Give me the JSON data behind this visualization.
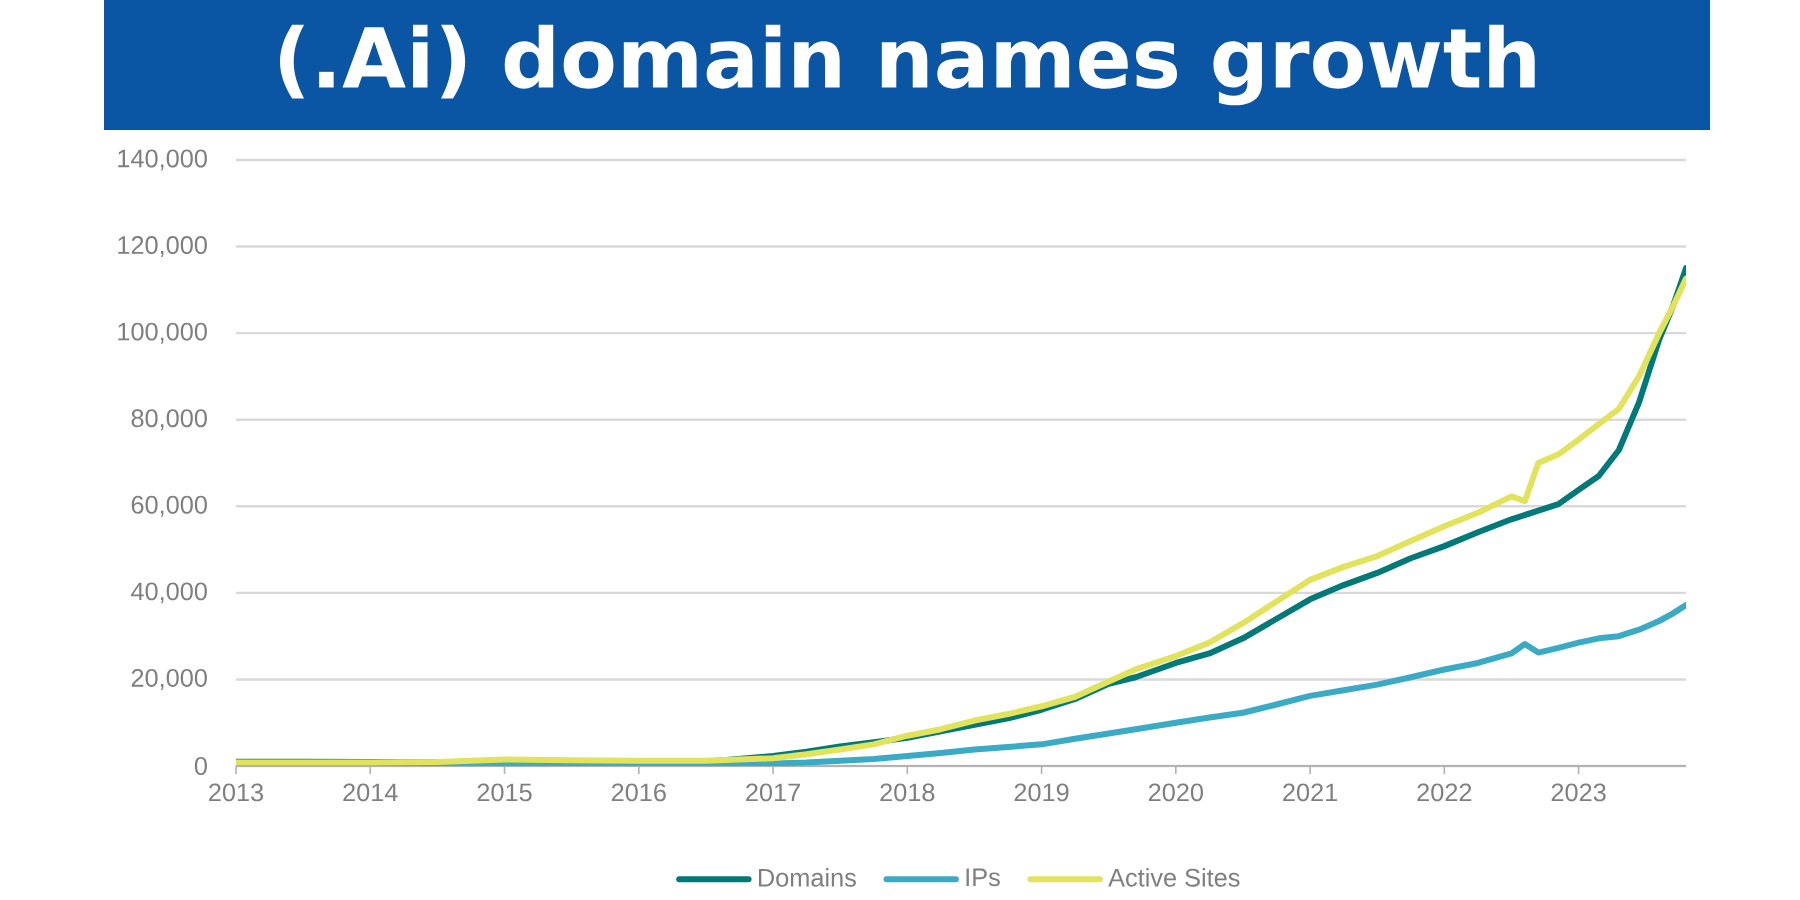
{
  "chart_data": {
    "type": "line",
    "title": "(.Ai) domain names growth",
    "x": [
      2013,
      2013.5,
      2014,
      2014.5,
      2015,
      2015.5,
      2016,
      2016.5,
      2017,
      2017.25,
      2017.5,
      2017.75,
      2018,
      2018.25,
      2018.5,
      2018.75,
      2019,
      2019.25,
      2019.5,
      2019.7,
      2020,
      2020.25,
      2020.5,
      2020.75,
      2021,
      2021.25,
      2021.5,
      2021.75,
      2022,
      2022.25,
      2022.5,
      2022.6,
      2022.7,
      2022.85,
      2023,
      2023.15,
      2023.3,
      2023.45,
      2023.6,
      2023.7,
      2023.8
    ],
    "series": [
      {
        "name": "Domains",
        "color": "#007a78",
        "values": [
          1000,
          1000,
          900,
          800,
          900,
          900,
          800,
          1000,
          2300,
          3300,
          4500,
          5500,
          6500,
          8000,
          9500,
          11000,
          13000,
          15500,
          19000,
          20500,
          23800,
          26000,
          29500,
          34000,
          38500,
          41800,
          44600,
          48000,
          50800,
          54000,
          57000,
          58000,
          59000,
          60500,
          63800,
          67000,
          73000,
          84000,
          98500,
          106000,
          115000
        ]
      },
      {
        "name": "IPs",
        "color": "#3aaac5",
        "values": [
          200,
          200,
          200,
          200,
          300,
          300,
          300,
          400,
          600,
          800,
          1200,
          1600,
          2300,
          3000,
          3800,
          4400,
          5000,
          6300,
          7500,
          8500,
          10000,
          11200,
          12300,
          14200,
          16200,
          17500,
          18800,
          20500,
          22300,
          23800,
          26000,
          28200,
          26200,
          27300,
          28500,
          29500,
          30000,
          31500,
          33500,
          35200,
          37200
        ]
      },
      {
        "name": "Active Sites",
        "color": "#e2e35c",
        "values": [
          800,
          800,
          800,
          900,
          1500,
          1300,
          1200,
          1200,
          1800,
          2700,
          3800,
          5000,
          7000,
          8500,
          10500,
          12000,
          13800,
          16000,
          19500,
          22300,
          25400,
          28500,
          33000,
          38000,
          43000,
          46000,
          48500,
          52000,
          55400,
          58500,
          62300,
          61200,
          70000,
          72000,
          75400,
          79000,
          82500,
          90000,
          100000,
          106000,
          112600
        ]
      }
    ],
    "xlim": [
      2013,
      2023.8
    ],
    "xticks": [
      2013,
      2014,
      2015,
      2016,
      2017,
      2018,
      2019,
      2020,
      2021,
      2022,
      2023
    ],
    "ylim": [
      0,
      140000
    ],
    "yticks": [
      0,
      {
        "value": 20000,
        "label": "20,000"
      },
      {
        "value": 40000,
        "label": "40,000"
      },
      {
        "value": 60000,
        "label": "60,000"
      },
      {
        "value": 80000,
        "label": "80,000"
      },
      {
        "value": 100000,
        "label": "100,000"
      },
      {
        "value": 120000,
        "label": "120,000"
      },
      {
        "value": 140000,
        "label": "140,000"
      }
    ],
    "grid": "y",
    "legend": "bottom"
  }
}
